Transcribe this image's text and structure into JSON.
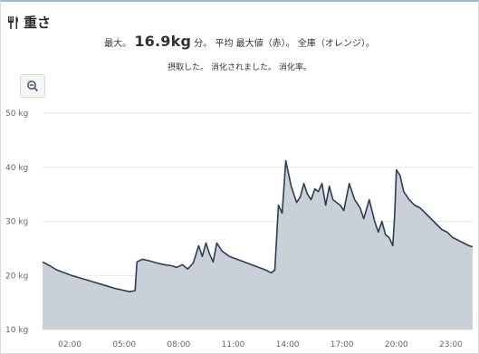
{
  "header": {
    "title": "重さ",
    "icon": "fork-knife-icon"
  },
  "summary": {
    "prefix": "最大。",
    "max_value": "16.9kg",
    "suffix": "分。 平均 最大値（赤）。 全庫（オレンジ）。",
    "line2": "摂取した。 消化されました。 消化率。"
  },
  "zoom": {
    "icon": "zoom-out-icon"
  },
  "colors": {
    "line": "#2d3d55",
    "fill": "#c9d0d8",
    "grid": "#e6e6e6",
    "title_border": "#9cb7d6"
  },
  "chart_data": {
    "type": "area",
    "ylim": [
      10,
      50
    ],
    "y_ticks": [
      "10 kg",
      "20 kg",
      "30 kg",
      "40 kg",
      "50 kg"
    ],
    "y_tick_values": [
      10,
      20,
      30,
      40,
      50
    ],
    "xlim": [
      0.5,
      24.2
    ],
    "x_ticks": [
      "02:00",
      "05:00",
      "08:00",
      "11:00",
      "14:00",
      "17:00",
      "20:00",
      "23:00"
    ],
    "x_tick_values": [
      2,
      5,
      8,
      11,
      14,
      17,
      20,
      23
    ],
    "grid": true,
    "series": [
      {
        "x": [
          0.5,
          0.9,
          1.3,
          1.7,
          2.1,
          2.5,
          2.9,
          3.3,
          3.7,
          4.1,
          4.5,
          4.9,
          5.3,
          5.6,
          5.7,
          6.0,
          6.4,
          6.8,
          7.2,
          7.6,
          7.9,
          8.2,
          8.5,
          8.8,
          9.1,
          9.3,
          9.5,
          9.7,
          9.9,
          10.1,
          10.4,
          10.8,
          11.2,
          11.6,
          12.0,
          12.4,
          12.8,
          13.1,
          13.3,
          13.5,
          13.7,
          13.9,
          14.2,
          14.5,
          14.7,
          14.9,
          15.1,
          15.3,
          15.5,
          15.7,
          15.9,
          16.1,
          16.3,
          16.5,
          16.7,
          16.9,
          17.1,
          17.4,
          17.7,
          18.0,
          18.2,
          18.5,
          18.8,
          19.0,
          19.2,
          19.4,
          19.6,
          19.8,
          19.9,
          20.0,
          20.2,
          20.4,
          20.7,
          21.0,
          21.3,
          21.6,
          21.9,
          22.2,
          22.5,
          22.8,
          23.1,
          23.4,
          23.7,
          24.0,
          24.2
        ],
        "y": [
          22.5,
          21.8,
          21.0,
          20.5,
          20.0,
          19.6,
          19.2,
          18.8,
          18.4,
          18.0,
          17.6,
          17.3,
          17.0,
          17.2,
          22.5,
          23.0,
          22.7,
          22.3,
          22.0,
          21.8,
          21.5,
          22.0,
          21.2,
          22.3,
          25.5,
          23.5,
          26.0,
          24.0,
          22.5,
          26.0,
          24.5,
          23.5,
          23.0,
          22.5,
          22.0,
          21.5,
          21.0,
          20.5,
          21.0,
          33.0,
          31.5,
          41.2,
          36.5,
          33.5,
          34.5,
          37.0,
          35.0,
          34.0,
          36.0,
          35.5,
          37.0,
          33.0,
          36.5,
          34.0,
          33.5,
          33.0,
          32.0,
          37.0,
          34.0,
          32.5,
          30.5,
          34.0,
          30.0,
          28.0,
          30.0,
          27.5,
          27.0,
          25.5,
          31.0,
          39.5,
          38.5,
          35.5,
          34.0,
          33.0,
          32.5,
          31.5,
          30.5,
          29.5,
          28.5,
          28.0,
          27.0,
          26.5,
          26.0,
          25.5,
          25.3
        ]
      }
    ]
  }
}
